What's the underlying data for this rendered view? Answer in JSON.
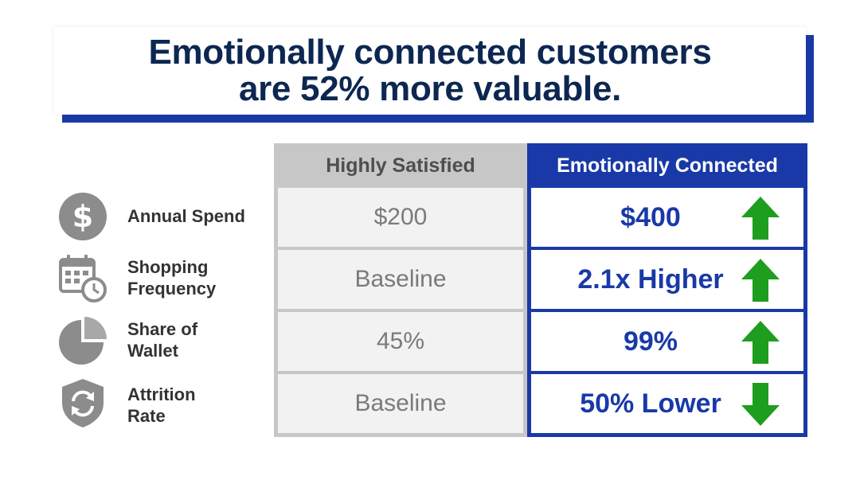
{
  "title": {
    "line1": "Emotionally connected customers",
    "line2": "are 52% more valuable."
  },
  "columns": {
    "satisfied_header": "Highly Satisfied",
    "connected_header": "Emotionally Connected"
  },
  "rows": [
    {
      "icon": "dollar-icon",
      "label_line1": "Annual Spend",
      "label_line2": "",
      "satisfied": "$200",
      "connected": "$400",
      "trend": "up"
    },
    {
      "icon": "calendar-clock-icon",
      "label_line1": "Shopping",
      "label_line2": "Frequency",
      "satisfied": "Baseline",
      "connected": "2.1x Higher",
      "trend": "up"
    },
    {
      "icon": "pie-chart-icon",
      "label_line1": "Share of",
      "label_line2": "Wallet",
      "satisfied": "45%",
      "connected": "99%",
      "trend": "up"
    },
    {
      "icon": "shield-refresh-icon",
      "label_line1": "Attrition",
      "label_line2": "Rate",
      "satisfied": "Baseline",
      "connected": "50% Lower",
      "trend": "down"
    }
  ],
  "colors": {
    "title_text": "#0c2751",
    "accent_blue": "#1939a8",
    "arrow_green": "#1e9e1e",
    "icon_grey": "#8c8c8c"
  }
}
